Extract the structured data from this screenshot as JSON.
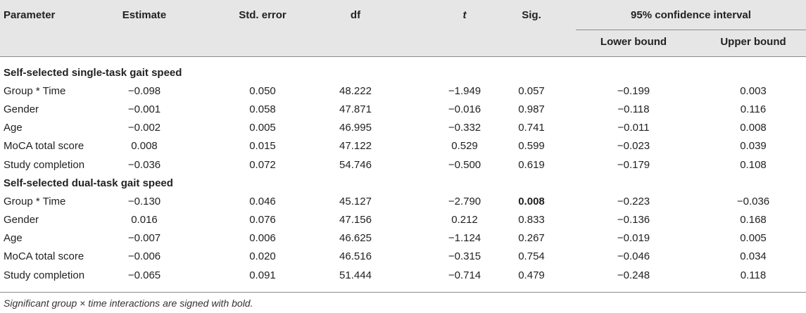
{
  "headers": {
    "parameter": "Parameter",
    "estimate": "Estimate",
    "std_error": "Std. error",
    "df": "df",
    "t": "t",
    "sig": "Sig.",
    "ci": "95% confidence interval",
    "lower": "Lower bound",
    "upper": "Upper bound"
  },
  "sections": [
    {
      "title": "Self-selected single-task gait speed",
      "rows": [
        [
          "Group * Time",
          "−0.098",
          "0.050",
          "48.222",
          "−1.949",
          "0.057",
          "−0.199",
          "0.003"
        ],
        [
          "Gender",
          "−0.001",
          "0.058",
          "47.871",
          "−0.016",
          "0.987",
          "−0.118",
          "0.116"
        ],
        [
          "Age",
          "−0.002",
          "0.005",
          "46.995",
          "−0.332",
          "0.741",
          "−0.011",
          "0.008"
        ],
        [
          "MoCA total score",
          "0.008",
          "0.015",
          "47.122",
          "0.529",
          "0.599",
          "−0.023",
          "0.039"
        ],
        [
          "Study completion",
          "−0.036",
          "0.072",
          "54.746",
          "−0.500",
          "0.619",
          "−0.179",
          "0.108"
        ]
      ]
    },
    {
      "title": "Self-selected dual-task gait speed",
      "rows": [
        [
          "Group * Time",
          "−0.130",
          "0.046",
          "45.127",
          "−2.790",
          "0.008",
          "−0.223",
          "−0.036"
        ],
        [
          "Gender",
          "0.016",
          "0.076",
          "47.156",
          "0.212",
          "0.833",
          "−0.136",
          "0.168"
        ],
        [
          "Age",
          "−0.007",
          "0.006",
          "46.625",
          "−1.124",
          "0.267",
          "−0.019",
          "0.005"
        ],
        [
          "MoCA total score",
          "−0.006",
          "0.020",
          "46.516",
          "−0.315",
          "0.754",
          "−0.046",
          "0.034"
        ],
        [
          "Study completion",
          "−0.065",
          "0.091",
          "51.444",
          "−0.714",
          "0.479",
          "−0.248",
          "0.118"
        ]
      ]
    }
  ],
  "footnote": "Significant group × time interactions are signed with bold."
}
